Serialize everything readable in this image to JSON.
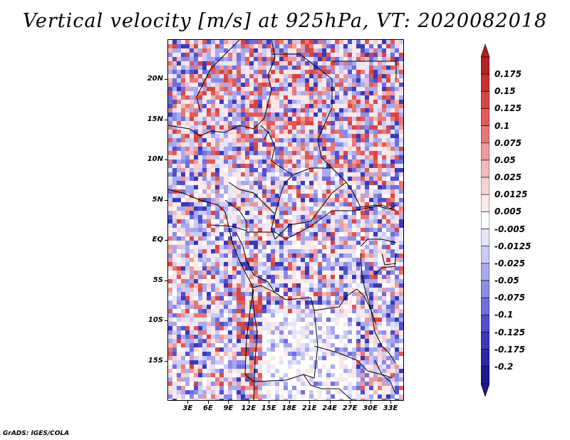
{
  "title": "Vertical velocity [m/s] at 925hPa, VT: 2020082018",
  "footer": "GrADS: IGES/COLA",
  "map": {
    "region": "Central Africa",
    "lon_range": [
      0,
      35
    ],
    "lat_range": [
      -20,
      25
    ],
    "y_ticks": [
      "20N",
      "15N",
      "10N",
      "5N",
      "EQ",
      "5S",
      "10S",
      "15S"
    ],
    "x_ticks": [
      "3E",
      "6E",
      "9E",
      "12E",
      "15E",
      "18E",
      "21E",
      "24E",
      "27E",
      "30E",
      "33E"
    ]
  },
  "colorbar": {
    "labels": [
      "0.175",
      "0.15",
      "0.125",
      "0.1",
      "0.075",
      "0.05",
      "0.025",
      "0.0125",
      "0.005",
      "-0.005",
      "-0.0125",
      "-0.025",
      "-0.05",
      "-0.075",
      "-0.1",
      "-0.125",
      "-0.175",
      "-0.2"
    ],
    "colors": [
      "#b22222",
      "#c83030",
      "#d84545",
      "#e05a5a",
      "#e67878",
      "#ee9a9a",
      "#f4b8b8",
      "#f8d2d2",
      "#fce8e8",
      "#ffffff",
      "#e4e4fb",
      "#cacaf6",
      "#a9a9ef",
      "#8c8ce6",
      "#6f6fdc",
      "#5050cc",
      "#3a3ab8",
      "#2828a8",
      "#1c1c8c"
    ]
  }
}
